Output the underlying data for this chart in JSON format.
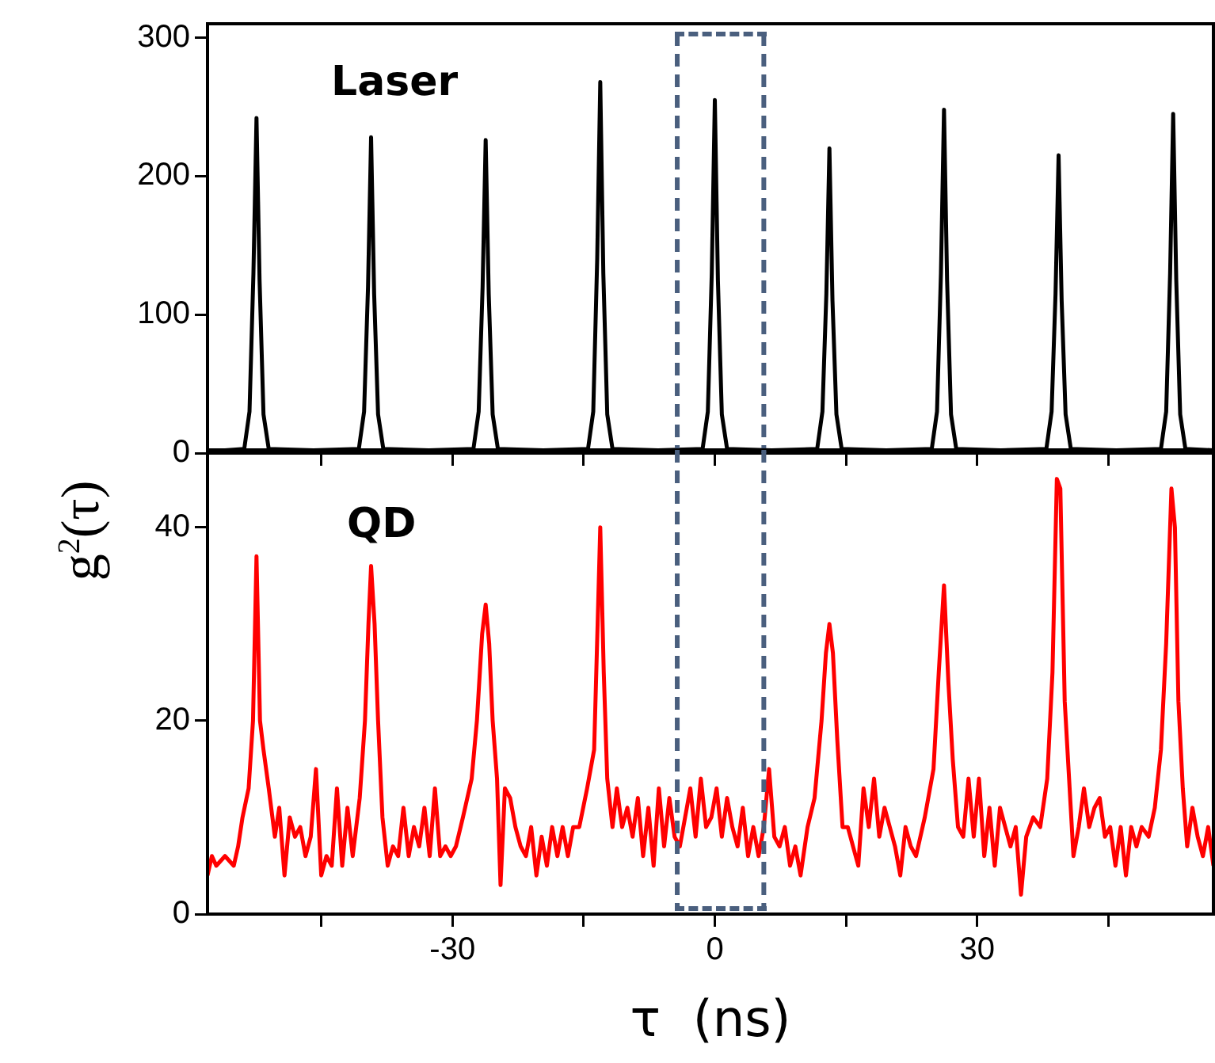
{
  "chart_data": [
    {
      "type": "line",
      "annotations": [
        "Laser"
      ],
      "ref_lines": [
        {
          "axis": "x",
          "value": -4.3,
          "color": "#4a5f7e",
          "line_style": "dashed"
        },
        {
          "axis": "x",
          "value": 5.6,
          "color": "#4a5f7e",
          "line_style": "dashed"
        }
      ],
      "tick_labels": "y",
      "marker": "none",
      "grid": false,
      "legend": false,
      "xlim": [
        -58,
        57
      ],
      "xticks": [
        {
          "value": -45,
          "label": null
        },
        {
          "value": -30,
          "label": null
        },
        {
          "value": -15,
          "label": null
        },
        {
          "value": 0,
          "label": null
        },
        {
          "value": 15,
          "label": null
        },
        {
          "value": 30,
          "label": null
        },
        {
          "value": 45,
          "label": null
        }
      ],
      "ylim": [
        0,
        310
      ],
      "yticks": [
        0,
        100,
        200,
        300
      ],
      "x": [
        -58,
        -56,
        -53.8,
        -53.2,
        -52.75,
        -52.4,
        -52.05,
        -51.6,
        -51,
        -45.9,
        -40.7,
        -40.1,
        -39.65,
        -39.3,
        -38.95,
        -38.5,
        -37.9,
        -32.7,
        -27.6,
        -27,
        -26.55,
        -26.2,
        -25.85,
        -25.4,
        -24.8,
        -19.6,
        -14.5,
        -13.9,
        -13.45,
        -13.1,
        -12.75,
        -12.3,
        -11.7,
        -6.5,
        -1.4,
        -0.8,
        -0.35,
        0,
        0.35,
        0.8,
        1.4,
        6.5,
        11.7,
        12.3,
        12.75,
        13.1,
        13.45,
        13.9,
        14.5,
        19.6,
        24.8,
        25.4,
        25.85,
        26.2,
        26.55,
        27,
        27.6,
        32.7,
        37.9,
        38.5,
        38.95,
        39.3,
        39.65,
        40.1,
        40.7,
        45.9,
        51,
        51.6,
        52.05,
        52.4,
        52.75,
        53.2,
        53.8,
        57
      ],
      "series": [
        {
          "color": "#000000",
          "values": [
            2,
            2,
            3,
            30,
            130,
            242,
            125,
            28,
            3,
            2,
            3,
            30,
            120,
            228,
            115,
            28,
            3,
            2,
            3,
            30,
            120,
            226,
            115,
            28,
            3,
            2,
            3,
            30,
            140,
            268,
            130,
            28,
            3,
            2,
            3,
            30,
            130,
            255,
            125,
            28,
            3,
            2,
            3,
            30,
            115,
            220,
            110,
            28,
            3,
            2,
            3,
            30,
            130,
            248,
            125,
            28,
            3,
            2,
            3,
            30,
            115,
            215,
            110,
            28,
            3,
            2,
            3,
            30,
            130,
            245,
            125,
            28,
            3,
            2
          ]
        }
      ]
    },
    {
      "type": "line",
      "annotations": [
        "QD"
      ],
      "ref_lines": [
        {
          "axis": "x",
          "value": -4.3,
          "color": "#4a5f7e",
          "line_style": "dashed"
        },
        {
          "axis": "x",
          "value": 5.6,
          "color": "#4a5f7e",
          "line_style": "dashed"
        }
      ],
      "marker": "none",
      "grid": false,
      "legend": false,
      "xlabel": "τ  (ns)",
      "ylabel": "g$^{2}$(τ)",
      "xlim": [
        -58,
        57
      ],
      "xticks": [
        {
          "value": -45,
          "label": null
        },
        -30,
        {
          "value": -15,
          "label": null
        },
        0,
        {
          "value": 15,
          "label": null
        },
        30,
        {
          "value": 45,
          "label": null
        }
      ],
      "ylim": [
        0,
        48
      ],
      "yticks": [
        0,
        20,
        40
      ],
      "x": [
        -58,
        -57.5,
        -57,
        -56,
        -55,
        -54.5,
        -54,
        -53.3,
        -52.8,
        -52.4,
        -52,
        -51.6,
        -51,
        -50.3,
        -49.8,
        -49.2,
        -48.6,
        -48,
        -47.4,
        -46.8,
        -46.2,
        -45.6,
        -45,
        -44.4,
        -43.8,
        -43.2,
        -42.6,
        -42,
        -41.4,
        -40.6,
        -40,
        -39.6,
        -39.3,
        -38.9,
        -38.5,
        -38,
        -37.4,
        -36.8,
        -36.2,
        -35.6,
        -35,
        -34.4,
        -33.8,
        -33.2,
        -32.6,
        -32,
        -31.4,
        -30.8,
        -30.2,
        -29.6,
        -28.8,
        -27.8,
        -27.2,
        -26.6,
        -26.2,
        -25.8,
        -25.4,
        -24.9,
        -24.5,
        -24,
        -23.4,
        -22.8,
        -22.2,
        -21.6,
        -21,
        -20.4,
        -19.8,
        -19.2,
        -18.6,
        -18,
        -17.4,
        -16.8,
        -16.2,
        -15.5,
        -14.6,
        -13.8,
        -13.4,
        -13.1,
        -12.7,
        -12.3,
        -11.7,
        -11.2,
        -10.6,
        -10,
        -9.4,
        -8.8,
        -8.2,
        -7.6,
        -7,
        -6.4,
        -5.8,
        -5.2,
        -4.6,
        -4,
        -3.4,
        -2.8,
        -2.2,
        -1.6,
        -1,
        -0.4,
        0.2,
        0.8,
        1.4,
        2,
        2.6,
        3.2,
        3.8,
        4.4,
        5,
        5.6,
        6.2,
        6.8,
        7.4,
        8,
        8.6,
        9.2,
        9.8,
        10.6,
        11.4,
        12.2,
        12.7,
        13.1,
        13.5,
        14,
        14.6,
        15.2,
        15.8,
        16.4,
        17,
        17.6,
        18.2,
        18.8,
        19.4,
        20,
        20.6,
        21.2,
        21.8,
        22.4,
        23,
        24,
        25,
        25.6,
        26.2,
        26.7,
        27.2,
        27.8,
        28.4,
        29,
        29.6,
        30.2,
        30.8,
        31.4,
        32,
        32.6,
        33.2,
        33.8,
        34.4,
        35,
        35.6,
        36.4,
        37.2,
        38,
        38.6,
        39.1,
        39.5,
        40,
        40.5,
        41,
        41.6,
        42.2,
        42.8,
        43.4,
        44,
        44.6,
        45.2,
        45.8,
        46.4,
        47,
        47.6,
        48.2,
        48.8,
        49.6,
        50.3,
        51,
        51.6,
        52.2,
        52.6,
        53,
        53.5,
        54,
        54.6,
        55.2,
        55.8,
        56.4,
        57
      ],
      "series": [
        {
          "color": "#ff0000",
          "values": [
            4,
            6,
            5,
            6,
            5,
            7,
            10,
            13,
            20,
            37,
            20,
            17,
            13,
            8,
            11,
            4,
            10,
            8,
            9,
            6,
            8,
            15,
            4,
            6,
            5,
            13,
            5,
            11,
            6,
            12,
            20,
            30,
            36,
            30,
            20,
            10,
            5,
            7,
            6,
            11,
            6,
            9,
            7,
            11,
            6,
            13,
            6,
            7,
            6,
            7,
            10,
            14,
            20,
            29,
            32,
            28,
            20,
            14,
            3,
            13,
            12,
            9,
            7,
            6,
            9,
            4,
            8,
            5,
            9,
            6,
            9,
            6,
            9,
            9,
            13,
            17,
            30,
            40,
            25,
            14,
            9,
            13,
            9,
            11,
            8,
            12,
            6,
            11,
            5,
            13,
            7,
            12,
            8,
            7,
            10,
            13,
            8,
            14,
            9,
            10,
            13,
            8,
            12,
            9,
            7,
            11,
            6,
            9,
            6,
            9,
            15,
            8,
            7,
            9,
            5,
            7,
            4,
            9,
            12,
            20,
            27,
            30,
            27,
            18,
            9,
            9,
            7,
            5,
            13,
            9,
            14,
            8,
            11,
            9,
            7,
            4,
            9,
            7,
            6,
            10,
            15,
            25,
            34,
            24,
            16,
            9,
            8,
            14,
            8,
            14,
            6,
            11,
            5,
            11,
            9,
            7,
            9,
            2,
            8,
            10,
            9,
            14,
            25,
            45,
            44,
            22,
            14,
            6,
            9,
            13,
            9,
            11,
            12,
            8,
            9,
            5,
            9,
            4,
            9,
            7,
            9,
            8,
            11,
            17,
            28,
            44,
            40,
            22,
            13,
            7,
            11,
            8,
            6,
            9,
            5
          ]
        }
      ]
    }
  ]
}
